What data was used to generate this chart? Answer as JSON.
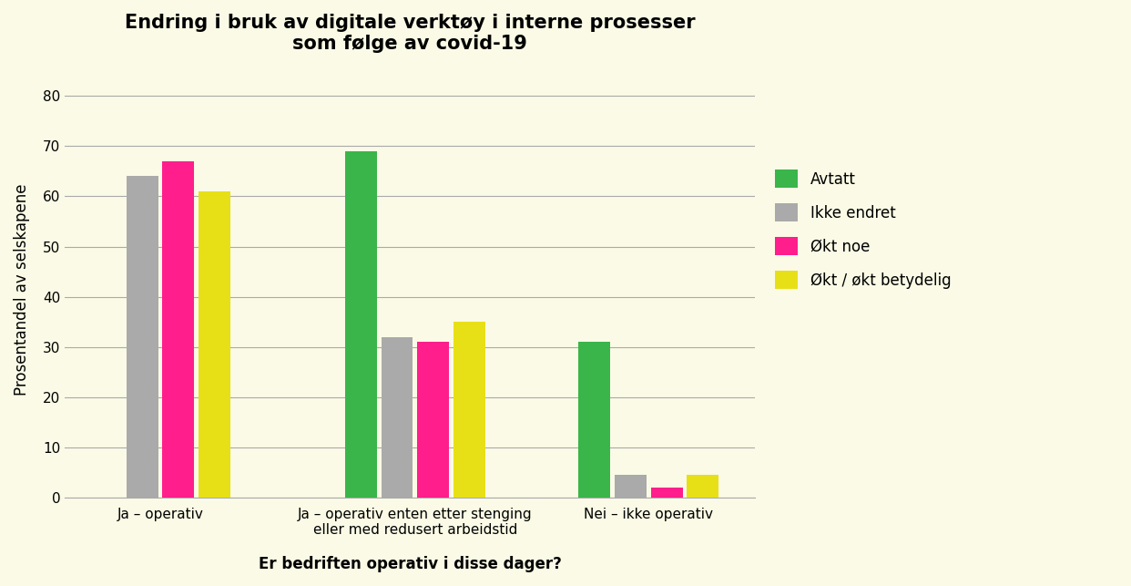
{
  "title": "Endring i bruk av digitale verktøy i interne prosesser\nsom følge av covid-19",
  "xlabel": "Er bedriften operativ i disse dager?",
  "ylabel": "Prosentandel av selskapene",
  "categories": [
    "Ja – operativ",
    "Ja – operativ enten etter stenging\neller med redusert arbeidstid",
    "Nei – ikke operativ"
  ],
  "series_names": [
    "Avtatt",
    "Ikke endret",
    "Økt noe",
    "Økt / økt betydelig"
  ],
  "series_values": [
    [
      0,
      69,
      31
    ],
    [
      64,
      32,
      4.5
    ],
    [
      67,
      31,
      2
    ],
    [
      61,
      35,
      4.5
    ]
  ],
  "colors": [
    "#3ab54a",
    "#aaaaaa",
    "#ff1e8c",
    "#e8e017"
  ],
  "ylim": [
    0,
    83
  ],
  "yticks": [
    0,
    10,
    20,
    30,
    40,
    50,
    60,
    70,
    80
  ],
  "background_color": "#fafae6",
  "title_fontsize": 15,
  "axis_label_fontsize": 12,
  "tick_fontsize": 11,
  "legend_fontsize": 12,
  "bar_width": 0.15,
  "group_positions": [
    0.35,
    1.35,
    2.35
  ],
  "xlim": [
    -0.15,
    3.05
  ]
}
